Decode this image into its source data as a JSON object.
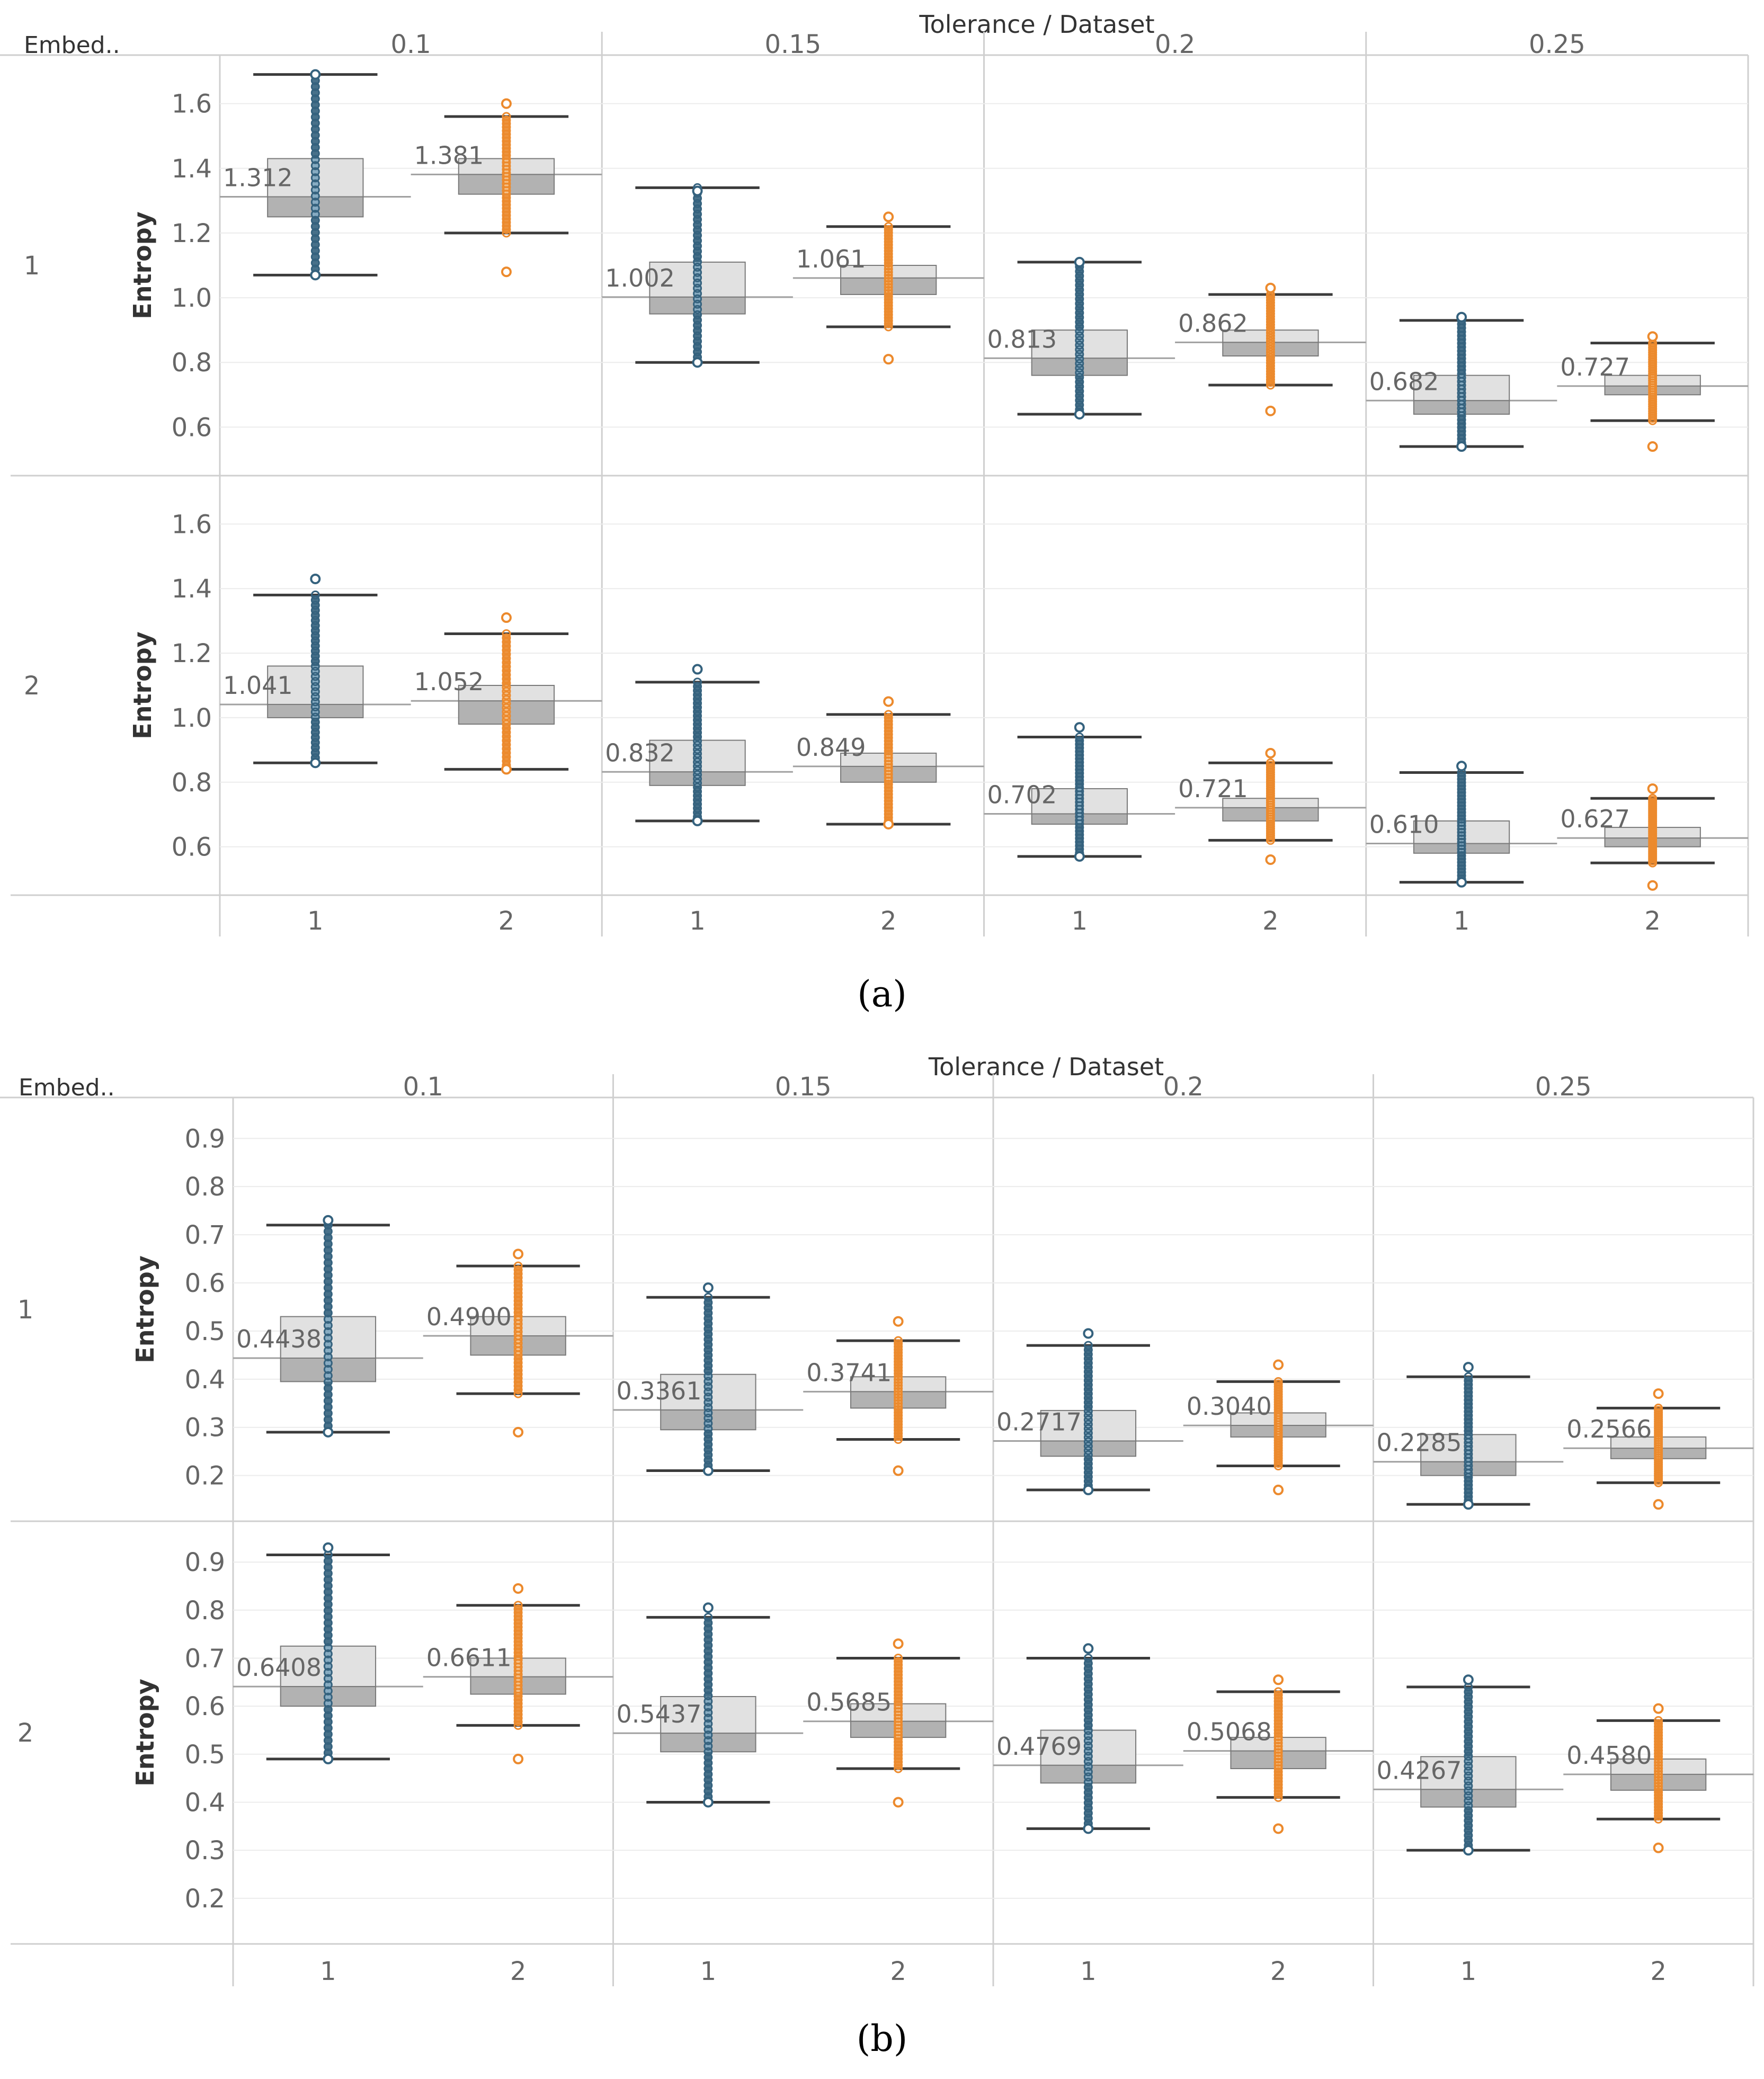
{
  "figures": [
    {
      "caption": "(a)",
      "top_header": "Tolerance / Dataset",
      "corner_label": "Embed..",
      "row_axis_label": "Entropy",
      "chart_data": {
        "type": "boxplot",
        "title": "Tolerance / Dataset",
        "ylabel": "Entropy",
        "row_field": "Embed..",
        "ylim": [
          0.45,
          1.75
        ],
        "yticks": [
          0.6,
          0.8,
          1.0,
          1.2,
          1.4,
          1.6
        ],
        "ytick_labels": [
          "0.6",
          "0.8",
          "1.0",
          "1.2",
          "1.4",
          "1.6"
        ],
        "tolerances": [
          "0.1",
          "0.15",
          "0.2",
          "0.25"
        ],
        "datasets": [
          "1",
          "2"
        ],
        "rows": [
          {
            "label": "1",
            "boxes": [
              {
                "tolerance": "0.1",
                "dataset": "1",
                "median_label": "1.312",
                "median": 1.312,
                "q1": 1.25,
                "q3": 1.43,
                "whisker_low": 1.07,
                "whisker_high": 1.69,
                "outliers_low": 1.07,
                "outliers_high": 1.69
              },
              {
                "tolerance": "0.1",
                "dataset": "2",
                "median_label": "1.381",
                "median": 1.381,
                "q1": 1.32,
                "q3": 1.43,
                "whisker_low": 1.2,
                "whisker_high": 1.56,
                "outliers_low": 1.08,
                "outliers_high": 1.6
              },
              {
                "tolerance": "0.15",
                "dataset": "1",
                "median_label": "1.002",
                "median": 1.002,
                "q1": 0.95,
                "q3": 1.11,
                "whisker_low": 0.8,
                "whisker_high": 1.34,
                "outliers_low": 0.8,
                "outliers_high": 1.33
              },
              {
                "tolerance": "0.15",
                "dataset": "2",
                "median_label": "1.061",
                "median": 1.061,
                "q1": 1.01,
                "q3": 1.1,
                "whisker_low": 0.91,
                "whisker_high": 1.22,
                "outliers_low": 0.81,
                "outliers_high": 1.25
              },
              {
                "tolerance": "0.2",
                "dataset": "1",
                "median_label": "0.813",
                "median": 0.813,
                "q1": 0.76,
                "q3": 0.9,
                "whisker_low": 0.64,
                "whisker_high": 1.11,
                "outliers_low": 0.64,
                "outliers_high": 1.11
              },
              {
                "tolerance": "0.2",
                "dataset": "2",
                "median_label": "0.862",
                "median": 0.862,
                "q1": 0.82,
                "q3": 0.9,
                "whisker_low": 0.73,
                "whisker_high": 1.01,
                "outliers_low": 0.65,
                "outliers_high": 1.03
              },
              {
                "tolerance": "0.25",
                "dataset": "1",
                "median_label": "0.682",
                "median": 0.682,
                "q1": 0.64,
                "q3": 0.76,
                "whisker_low": 0.54,
                "whisker_high": 0.93,
                "outliers_low": 0.54,
                "outliers_high": 0.94
              },
              {
                "tolerance": "0.25",
                "dataset": "2",
                "median_label": "0.727",
                "median": 0.727,
                "q1": 0.7,
                "q3": 0.76,
                "whisker_low": 0.62,
                "whisker_high": 0.86,
                "outliers_low": 0.54,
                "outliers_high": 0.88
              }
            ]
          },
          {
            "label": "2",
            "boxes": [
              {
                "tolerance": "0.1",
                "dataset": "1",
                "median_label": "1.041",
                "median": 1.041,
                "q1": 1.0,
                "q3": 1.16,
                "whisker_low": 0.86,
                "whisker_high": 1.38,
                "outliers_low": 0.86,
                "outliers_high": 1.43
              },
              {
                "tolerance": "0.1",
                "dataset": "2",
                "median_label": "1.052",
                "median": 1.052,
                "q1": 0.98,
                "q3": 1.1,
                "whisker_low": 0.84,
                "whisker_high": 1.26,
                "outliers_low": 0.84,
                "outliers_high": 1.31
              },
              {
                "tolerance": "0.15",
                "dataset": "1",
                "median_label": "0.832",
                "median": 0.832,
                "q1": 0.79,
                "q3": 0.93,
                "whisker_low": 0.68,
                "whisker_high": 1.11,
                "outliers_low": 0.68,
                "outliers_high": 1.15
              },
              {
                "tolerance": "0.15",
                "dataset": "2",
                "median_label": "0.849",
                "median": 0.849,
                "q1": 0.8,
                "q3": 0.89,
                "whisker_low": 0.67,
                "whisker_high": 1.01,
                "outliers_low": 0.67,
                "outliers_high": 1.05
              },
              {
                "tolerance": "0.2",
                "dataset": "1",
                "median_label": "0.702",
                "median": 0.702,
                "q1": 0.67,
                "q3": 0.78,
                "whisker_low": 0.57,
                "whisker_high": 0.94,
                "outliers_low": 0.57,
                "outliers_high": 0.97
              },
              {
                "tolerance": "0.2",
                "dataset": "2",
                "median_label": "0.721",
                "median": 0.721,
                "q1": 0.68,
                "q3": 0.75,
                "whisker_low": 0.62,
                "whisker_high": 0.86,
                "outliers_low": 0.56,
                "outliers_high": 0.89
              },
              {
                "tolerance": "0.25",
                "dataset": "1",
                "median_label": "0.610",
                "median": 0.61,
                "q1": 0.58,
                "q3": 0.68,
                "whisker_low": 0.49,
                "whisker_high": 0.83,
                "outliers_low": 0.49,
                "outliers_high": 0.85
              },
              {
                "tolerance": "0.25",
                "dataset": "2",
                "median_label": "0.627",
                "median": 0.627,
                "q1": 0.6,
                "q3": 0.66,
                "whisker_low": 0.55,
                "whisker_high": 0.75,
                "outliers_low": 0.48,
                "outliers_high": 0.78
              }
            ]
          }
        ]
      }
    },
    {
      "caption": "(b)",
      "top_header": "Tolerance / Dataset",
      "corner_label": "Embed..",
      "row_axis_label": "Entropy",
      "chart_data": {
        "type": "boxplot",
        "title": "Tolerance / Dataset",
        "ylabel": "Entropy",
        "row_field": "Embed..",
        "ylim": [
          0.105,
          0.985
        ],
        "yticks": [
          0.2,
          0.3,
          0.4,
          0.5,
          0.6,
          0.7,
          0.8,
          0.9
        ],
        "ytick_labels": [
          "0.2",
          "0.3",
          "0.4",
          "0.5",
          "0.6",
          "0.7",
          "0.8",
          "0.9"
        ],
        "tolerances": [
          "0.1",
          "0.15",
          "0.2",
          "0.25"
        ],
        "datasets": [
          "1",
          "2"
        ],
        "rows": [
          {
            "label": "1",
            "boxes": [
              {
                "tolerance": "0.1",
                "dataset": "1",
                "median_label": "0.4438",
                "median": 0.4438,
                "q1": 0.395,
                "q3": 0.53,
                "whisker_low": 0.29,
                "whisker_high": 0.72,
                "outliers_low": 0.29,
                "outliers_high": 0.73
              },
              {
                "tolerance": "0.1",
                "dataset": "2",
                "median_label": "0.4900",
                "median": 0.49,
                "q1": 0.45,
                "q3": 0.53,
                "whisker_low": 0.37,
                "whisker_high": 0.635,
                "outliers_low": 0.29,
                "outliers_high": 0.66
              },
              {
                "tolerance": "0.15",
                "dataset": "1",
                "median_label": "0.3361",
                "median": 0.3361,
                "q1": 0.295,
                "q3": 0.41,
                "whisker_low": 0.21,
                "whisker_high": 0.57,
                "outliers_low": 0.21,
                "outliers_high": 0.59
              },
              {
                "tolerance": "0.15",
                "dataset": "2",
                "median_label": "0.3741",
                "median": 0.3741,
                "q1": 0.34,
                "q3": 0.405,
                "whisker_low": 0.275,
                "whisker_high": 0.48,
                "outliers_low": 0.21,
                "outliers_high": 0.52
              },
              {
                "tolerance": "0.2",
                "dataset": "1",
                "median_label": "0.2717",
                "median": 0.2717,
                "q1": 0.24,
                "q3": 0.335,
                "whisker_low": 0.17,
                "whisker_high": 0.47,
                "outliers_low": 0.17,
                "outliers_high": 0.495
              },
              {
                "tolerance": "0.2",
                "dataset": "2",
                "median_label": "0.3040",
                "median": 0.304,
                "q1": 0.28,
                "q3": 0.33,
                "whisker_low": 0.22,
                "whisker_high": 0.395,
                "outliers_low": 0.17,
                "outliers_high": 0.43
              },
              {
                "tolerance": "0.25",
                "dataset": "1",
                "median_label": "0.2285",
                "median": 0.2285,
                "q1": 0.2,
                "q3": 0.285,
                "whisker_low": 0.14,
                "whisker_high": 0.405,
                "outliers_low": 0.14,
                "outliers_high": 0.425
              },
              {
                "tolerance": "0.25",
                "dataset": "2",
                "median_label": "0.2566",
                "median": 0.2566,
                "q1": 0.235,
                "q3": 0.28,
                "whisker_low": 0.185,
                "whisker_high": 0.34,
                "outliers_low": 0.14,
                "outliers_high": 0.37
              }
            ]
          },
          {
            "label": "2",
            "boxes": [
              {
                "tolerance": "0.1",
                "dataset": "1",
                "median_label": "0.6408",
                "median": 0.6408,
                "q1": 0.6,
                "q3": 0.725,
                "whisker_low": 0.49,
                "whisker_high": 0.915,
                "outliers_low": 0.49,
                "outliers_high": 0.93
              },
              {
                "tolerance": "0.1",
                "dataset": "2",
                "median_label": "0.6611",
                "median": 0.6611,
                "q1": 0.625,
                "q3": 0.7,
                "whisker_low": 0.56,
                "whisker_high": 0.81,
                "outliers_low": 0.49,
                "outliers_high": 0.845
              },
              {
                "tolerance": "0.15",
                "dataset": "1",
                "median_label": "0.5437",
                "median": 0.5437,
                "q1": 0.505,
                "q3": 0.62,
                "whisker_low": 0.4,
                "whisker_high": 0.785,
                "outliers_low": 0.4,
                "outliers_high": 0.805
              },
              {
                "tolerance": "0.15",
                "dataset": "2",
                "median_label": "0.5685",
                "median": 0.5685,
                "q1": 0.535,
                "q3": 0.605,
                "whisker_low": 0.47,
                "whisker_high": 0.7,
                "outliers_low": 0.4,
                "outliers_high": 0.73
              },
              {
                "tolerance": "0.2",
                "dataset": "1",
                "median_label": "0.4769",
                "median": 0.4769,
                "q1": 0.44,
                "q3": 0.55,
                "whisker_low": 0.345,
                "whisker_high": 0.7,
                "outliers_low": 0.345,
                "outliers_high": 0.72
              },
              {
                "tolerance": "0.2",
                "dataset": "2",
                "median_label": "0.5068",
                "median": 0.5068,
                "q1": 0.47,
                "q3": 0.535,
                "whisker_low": 0.41,
                "whisker_high": 0.63,
                "outliers_low": 0.345,
                "outliers_high": 0.655
              },
              {
                "tolerance": "0.25",
                "dataset": "1",
                "median_label": "0.4267",
                "median": 0.4267,
                "q1": 0.39,
                "q3": 0.495,
                "whisker_low": 0.3,
                "whisker_high": 0.64,
                "outliers_low": 0.3,
                "outliers_high": 0.655
              },
              {
                "tolerance": "0.25",
                "dataset": "2",
                "median_label": "0.4580",
                "median": 0.458,
                "q1": 0.425,
                "q3": 0.49,
                "whisker_low": 0.365,
                "whisker_high": 0.57,
                "outliers_low": 0.305,
                "outliers_high": 0.595
              }
            ]
          }
        ]
      }
    }
  ],
  "colors": {
    "dataset_1": "#35627e",
    "dataset_1_light": "#8fb3c9",
    "dataset_2": "#ec8a2d",
    "dataset_2_light": "#f7c690",
    "box_upper": "#e1e1e1",
    "box_lower": "#b2b2b2",
    "box_edge": "#7a7a7a",
    "whisker": "#3b3b3b",
    "median_ref": "#a0a0a0",
    "label_text": "#666666",
    "grid": "#ececec",
    "divider": "#cfcfcf",
    "header_text": "#333333"
  }
}
